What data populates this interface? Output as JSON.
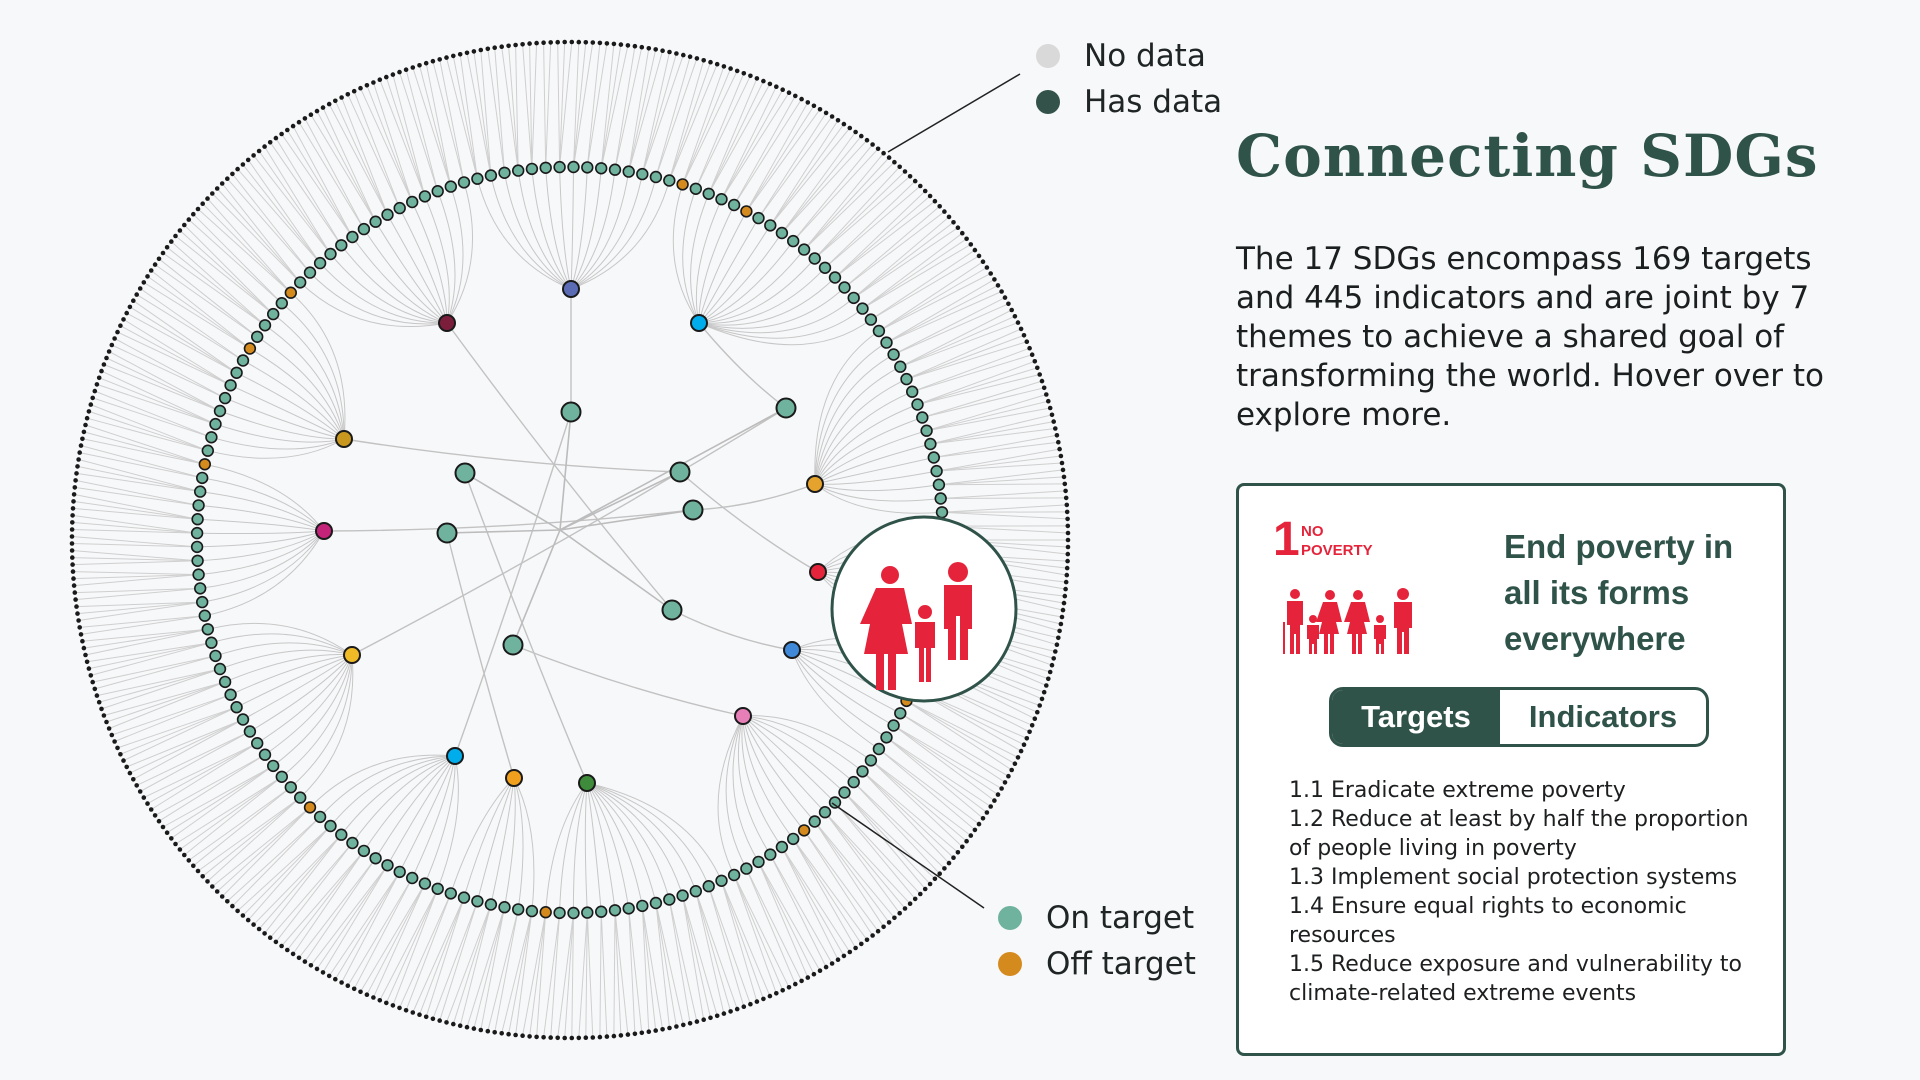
{
  "legend": {
    "no_data": {
      "label": "No data",
      "color": "#d9d9d9"
    },
    "has_data": {
      "label": "Has data",
      "color": "#33524a"
    },
    "on_target": {
      "label": "On target",
      "color": "#6fb29d"
    },
    "off_target": {
      "label": "Off target",
      "color": "#d58a1e"
    }
  },
  "title": "Connecting SDGs",
  "description": "The 17 SDGs encompass 169 targets and 445 indicators and are joint by 7 themes to achieve a shared goal of transforming the world. Hover over to explore more.",
  "card": {
    "goal_number": "1",
    "goal_short": "NO\nPOVERTY",
    "goal_color": "#e5243b",
    "goal_icon": "family-icon",
    "headline": "End poverty in all its forms everywhere",
    "tabs": {
      "targets": "Targets",
      "indicators": "Indicators",
      "active": "targets"
    },
    "targets": [
      "1.1 Eradicate extreme poverty",
      "1.2 Reduce at least by half the proportion of people living in poverty",
      "1.3 Implement social protection systems",
      "1.4 Ensure equal rights to economic resources",
      "1.5 Reduce exposure and vulnerability to climate-related extreme events"
    ]
  },
  "diagram": {
    "counts": {
      "indicators": 445,
      "targets": 169
    },
    "highlighted_goal_icon": "family-icon",
    "highlight_color": "#e5243b",
    "goal_colors": [
      "#5b6cb5",
      "#00adec",
      "#e5a32d",
      "#e5243b",
      "#3f89d8",
      "#e67fb8",
      "#3f8b3c",
      "#f0a01c",
      "#00adec",
      "#f0b926",
      "#c3247a",
      "#c8981e",
      "#7a1e3c"
    ]
  }
}
